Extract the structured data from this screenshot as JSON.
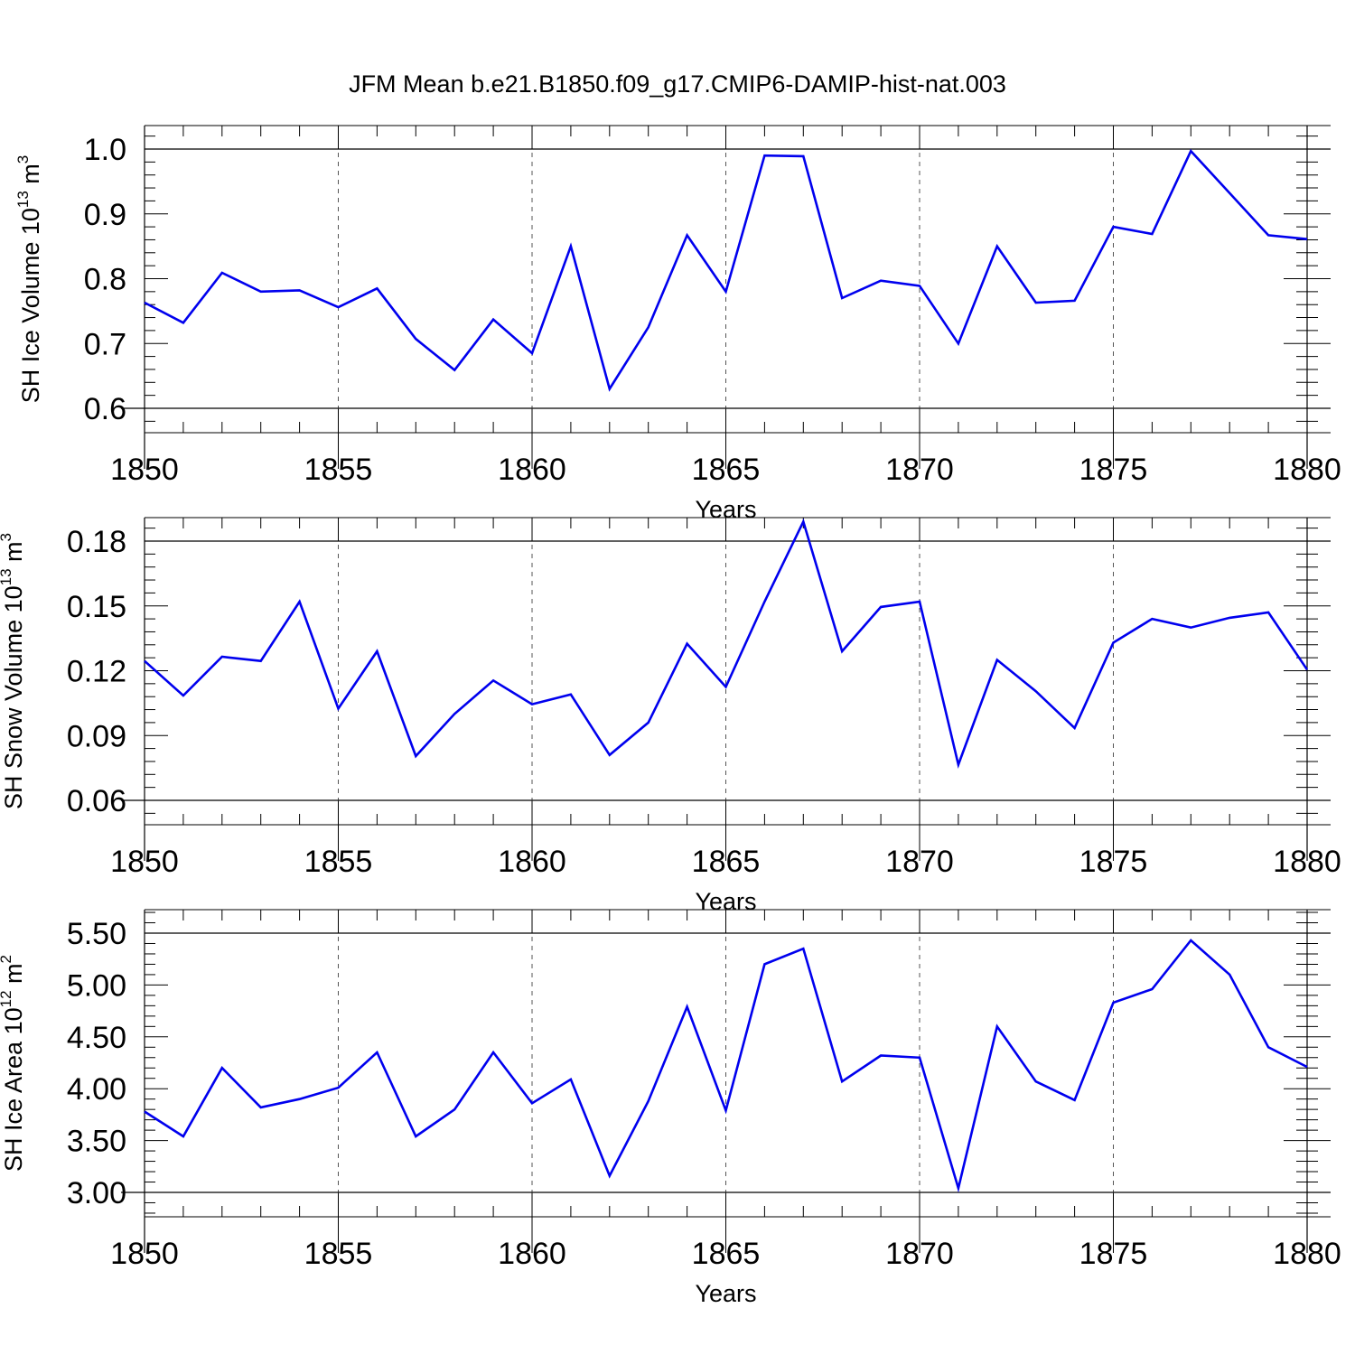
{
  "figure": {
    "title": "JFM Mean b.e21.B1850.f09_g17.CMIP6-DAMIP-hist-nat.003"
  },
  "chart_data": [
    {
      "type": "line",
      "xlabel": "Years",
      "ylabel_main": "SH Ice Volume 10",
      "ylabel_sup": "13",
      "ylabel_tail": " m",
      "ylabel_sup2": "3",
      "xlim": [
        1850,
        1880
      ],
      "ylim": [
        0.6,
        1.0
      ],
      "xticks": [
        "1850",
        "1855",
        "1860",
        "1865",
        "1870",
        "1875",
        "1880"
      ],
      "yticks": [
        "0.6",
        "0.7",
        "0.8",
        "0.9",
        "1.0"
      ],
      "color": "#0000ee",
      "grid": "vertical dashed at major x ticks",
      "x": [
        1850,
        1851,
        1852,
        1853,
        1854,
        1855,
        1856,
        1857,
        1858,
        1859,
        1860,
        1861,
        1862,
        1863,
        1864,
        1865,
        1866,
        1867,
        1868,
        1869,
        1870,
        1871,
        1872,
        1873,
        1874,
        1875,
        1876,
        1877,
        1878,
        1879,
        1880
      ],
      "values": [
        0.763,
        0.732,
        0.809,
        0.78,
        0.782,
        0.756,
        0.785,
        0.707,
        0.659,
        0.737,
        0.685,
        0.85,
        0.63,
        0.725,
        0.867,
        0.78,
        0.99,
        0.989,
        0.77,
        0.797,
        0.789,
        0.7,
        0.85,
        0.763,
        0.766,
        0.88,
        0.869,
        0.997,
        0.932,
        0.867,
        0.861
      ]
    },
    {
      "type": "line",
      "xlabel": "Years",
      "ylabel_main": "SH Snow Volume 10",
      "ylabel_sup": "13",
      "ylabel_tail": " m",
      "ylabel_sup2": "3",
      "xlim": [
        1850,
        1880
      ],
      "ylim": [
        0.06,
        0.2
      ],
      "xticks": [
        "1850",
        "1855",
        "1860",
        "1865",
        "1870",
        "1875",
        "1880"
      ],
      "yticks": [
        "0.06",
        "0.09",
        "0.12",
        "0.15",
        "0.18"
      ],
      "color": "#0000ee",
      "grid": "vertical dashed at major x ticks",
      "x": [
        1850,
        1851,
        1852,
        1853,
        1854,
        1855,
        1856,
        1857,
        1858,
        1859,
        1860,
        1861,
        1862,
        1863,
        1864,
        1865,
        1866,
        1867,
        1868,
        1869,
        1870,
        1871,
        1872,
        1873,
        1874,
        1875,
        1876,
        1877,
        1878,
        1879,
        1880
      ],
      "values": [
        0.1245,
        0.1085,
        0.1265,
        0.1245,
        0.152,
        0.1025,
        0.129,
        0.0805,
        0.1,
        0.1155,
        0.1045,
        0.109,
        0.081,
        0.096,
        0.1325,
        0.1125,
        0.152,
        0.189,
        0.129,
        0.1495,
        0.152,
        0.0765,
        0.125,
        0.1105,
        0.0935,
        0.133,
        0.144,
        0.14,
        0.1445,
        0.147,
        0.1205
      ]
    },
    {
      "type": "line",
      "xlabel": "Years",
      "ylabel_main": "SH Ice Area 10",
      "ylabel_sup": "12",
      "ylabel_tail": " m",
      "ylabel_sup2": "2",
      "xlim": [
        1850,
        1880
      ],
      "ylim": [
        2.8,
        5.6
      ],
      "xticks": [
        "1850",
        "1855",
        "1860",
        "1865",
        "1870",
        "1875",
        "1880"
      ],
      "yticks": [
        "3.00",
        "3.50",
        "4.00",
        "4.50",
        "5.00",
        "5.50"
      ],
      "color": "#0000ee",
      "grid": "vertical dashed at major x ticks",
      "x": [
        1850,
        1851,
        1852,
        1853,
        1854,
        1855,
        1856,
        1857,
        1858,
        1859,
        1860,
        1861,
        1862,
        1863,
        1864,
        1865,
        1866,
        1867,
        1868,
        1869,
        1870,
        1871,
        1872,
        1873,
        1874,
        1875,
        1876,
        1877,
        1878,
        1879,
        1880
      ],
      "values": [
        3.78,
        3.54,
        4.2,
        3.82,
        3.9,
        4.01,
        4.35,
        3.54,
        3.8,
        4.35,
        3.86,
        4.09,
        3.16,
        3.88,
        4.79,
        3.79,
        5.2,
        5.35,
        4.07,
        4.32,
        4.3,
        3.04,
        4.6,
        4.07,
        3.89,
        4.83,
        4.96,
        5.43,
        5.1,
        4.4,
        4.21
      ]
    }
  ]
}
